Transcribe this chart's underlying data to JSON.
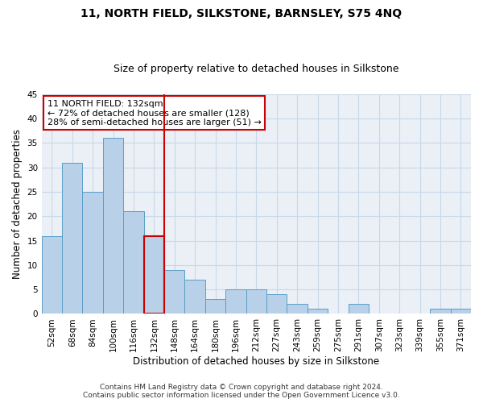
{
  "title": "11, NORTH FIELD, SILKSTONE, BARNSLEY, S75 4NQ",
  "subtitle": "Size of property relative to detached houses in Silkstone",
  "xlabel": "Distribution of detached houses by size in Silkstone",
  "ylabel": "Number of detached properties",
  "footer_line1": "Contains HM Land Registry data © Crown copyright and database right 2024.",
  "footer_line2": "Contains public sector information licensed under the Open Government Licence v3.0.",
  "categories": [
    "52sqm",
    "68sqm",
    "84sqm",
    "100sqm",
    "116sqm",
    "132sqm",
    "148sqm",
    "164sqm",
    "180sqm",
    "196sqm",
    "212sqm",
    "227sqm",
    "243sqm",
    "259sqm",
    "275sqm",
    "291sqm",
    "307sqm",
    "323sqm",
    "339sqm",
    "355sqm",
    "371sqm"
  ],
  "values": [
    16,
    31,
    25,
    36,
    21,
    16,
    9,
    7,
    3,
    5,
    5,
    4,
    2,
    1,
    0,
    2,
    0,
    0,
    0,
    1,
    1
  ],
  "bar_color": "#b8d0e8",
  "bar_edge_color": "#5a9ec8",
  "highlight_bar_index": 5,
  "vline_color": "#cc0000",
  "annotation_line1": "11 NORTH FIELD: 132sqm",
  "annotation_line2": "← 72% of detached houses are smaller (128)",
  "annotation_line3": "28% of semi-detached houses are larger (51) →",
  "annotation_box_color": "white",
  "annotation_box_edge": "#cc0000",
  "ylim": [
    0,
    45
  ],
  "yticks": [
    0,
    5,
    10,
    15,
    20,
    25,
    30,
    35,
    40,
    45
  ],
  "grid_color": "#c8d8e8",
  "bg_color": "#eaf0f6",
  "title_fontsize": 10,
  "subtitle_fontsize": 9,
  "axis_label_fontsize": 8.5,
  "tick_fontsize": 7.5,
  "footer_fontsize": 6.5,
  "annotation_fontsize": 8
}
